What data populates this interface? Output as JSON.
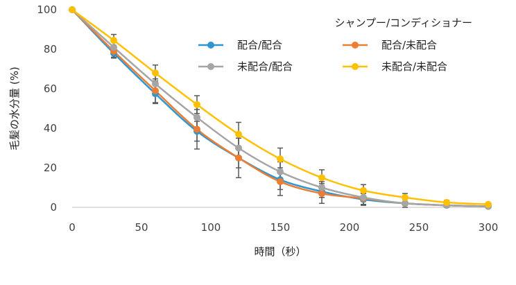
{
  "chart_data": {
    "type": "line",
    "title": "",
    "xlabel": "時間（秒）",
    "ylabel": "毛髪の水分量 (%)",
    "xlim": [
      0,
      300
    ],
    "ylim": [
      0,
      100
    ],
    "xticks": [
      "0",
      "50",
      "100",
      "150",
      "200",
      "250",
      "300"
    ],
    "yticks": [
      "0",
      "20",
      "40",
      "60",
      "80",
      "100"
    ],
    "grid": false,
    "legend": {
      "title": "シャンプー/コンディショナー",
      "placement": "top-right"
    },
    "x": [
      0,
      30,
      60,
      90,
      120,
      150,
      180,
      210,
      240,
      270,
      300
    ],
    "series": [
      {
        "name": "配合/配合",
        "color": "#2e96d3",
        "values": [
          100,
          78,
          57.5,
          38.5,
          25,
          14,
          8,
          4,
          2,
          1,
          0.5
        ],
        "errors": [
          0,
          2.5,
          5,
          5,
          5,
          5,
          3,
          3,
          1,
          0.5,
          0.5
        ]
      },
      {
        "name": "配合/未配合",
        "color": "#ed7d31",
        "values": [
          100,
          79,
          59,
          39.5,
          25,
          13,
          7,
          4.5,
          2,
          1,
          0.5
        ],
        "errors": [
          0,
          3,
          6,
          10,
          10,
          7,
          5,
          3,
          2,
          1,
          0.5
        ]
      },
      {
        "name": "未配合/配合",
        "color": "#a5a5a5",
        "values": [
          100,
          81,
          62.5,
          45.5,
          30,
          18,
          10,
          5,
          2,
          1,
          0.5
        ],
        "errors": [
          0,
          3,
          6,
          6,
          5,
          5,
          3,
          2,
          1,
          0.5,
          0.5
        ]
      },
      {
        "name": "未配合/未配合",
        "color": "#ffc000",
        "values": [
          100,
          84.5,
          68,
          52,
          37,
          24.5,
          15,
          8.5,
          5,
          2.5,
          1.5
        ],
        "errors": [
          0,
          3,
          4,
          4.5,
          6,
          5.5,
          4,
          3,
          2,
          1,
          0.5
        ]
      }
    ]
  }
}
